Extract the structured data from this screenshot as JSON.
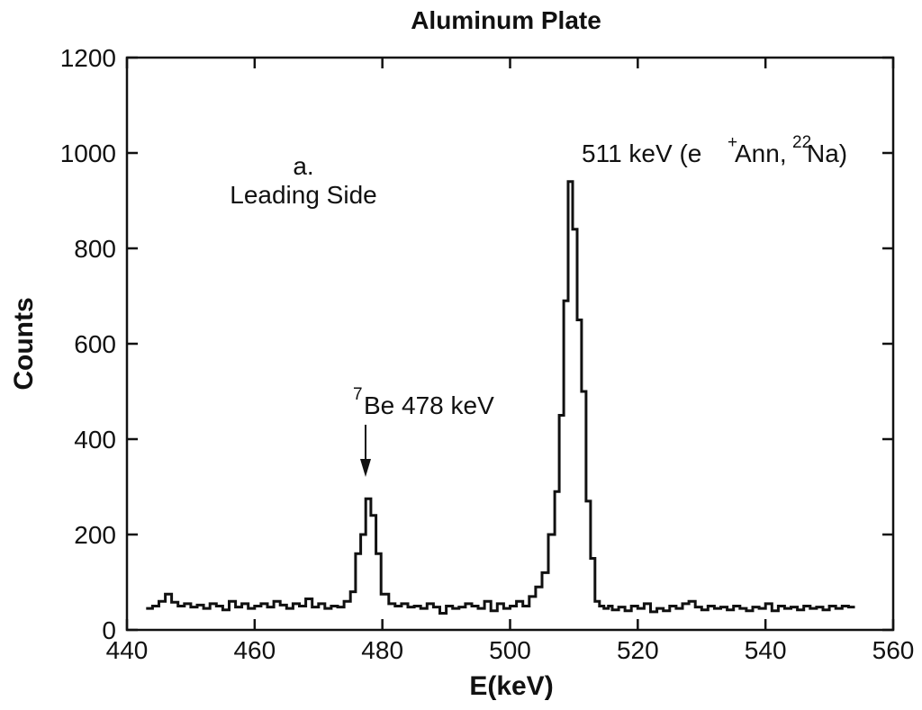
{
  "chart_data": {
    "type": "line",
    "title": "Aluminum Plate",
    "xlabel": "E(keV)",
    "ylabel": "Counts",
    "xlim": [
      440,
      560
    ],
    "ylim": [
      0,
      1200
    ],
    "xticks": [
      440,
      460,
      480,
      500,
      520,
      540,
      560
    ],
    "yticks": [
      0,
      200,
      400,
      600,
      800,
      1000,
      1200
    ],
    "grid": false,
    "series": [
      {
        "style": "step",
        "x": [
          443,
          444,
          445,
          446,
          447,
          448,
          449,
          450,
          451,
          452,
          453,
          454,
          455,
          456,
          457,
          458,
          459,
          460,
          461,
          462,
          463,
          464,
          465,
          466,
          467,
          468,
          469,
          470,
          471,
          472,
          473,
          474,
          475,
          475.8,
          476.6,
          477.4,
          478.2,
          479,
          479.8,
          481,
          482,
          483,
          484,
          485,
          486,
          487,
          488,
          489,
          490,
          491,
          492,
          493,
          494,
          495,
          496,
          497,
          498,
          499,
          500,
          501,
          502,
          503,
          504,
          505,
          506,
          507,
          507.7,
          508.4,
          509.1,
          509.8,
          510.5,
          511.2,
          511.9,
          512.6,
          513.3,
          514,
          514.7,
          515.4,
          516,
          517,
          518,
          519,
          520,
          521,
          522,
          523,
          524,
          525,
          526,
          527,
          528,
          529,
          530,
          531,
          532,
          533,
          534,
          535,
          536,
          537,
          538,
          539,
          540,
          541,
          542,
          543,
          544,
          545,
          546,
          547,
          548,
          549,
          550,
          551,
          552,
          553
        ],
        "y": [
          45,
          50,
          60,
          75,
          58,
          50,
          55,
          48,
          52,
          45,
          55,
          50,
          42,
          60,
          48,
          55,
          45,
          50,
          55,
          48,
          60,
          52,
          45,
          55,
          50,
          65,
          48,
          55,
          45,
          50,
          48,
          60,
          80,
          160,
          200,
          275,
          240,
          160,
          75,
          55,
          50,
          55,
          48,
          50,
          45,
          55,
          48,
          35,
          50,
          45,
          48,
          55,
          50,
          45,
          60,
          40,
          55,
          45,
          50,
          60,
          50,
          70,
          90,
          120,
          200,
          290,
          450,
          690,
          940,
          840,
          650,
          500,
          270,
          150,
          60,
          50,
          45,
          50,
          42,
          48,
          40,
          50,
          45,
          55,
          38,
          45,
          40,
          50,
          45,
          55,
          60,
          48,
          42,
          50,
          45,
          48,
          42,
          50,
          45,
          40,
          48,
          45,
          55,
          40,
          50,
          45,
          48,
          42,
          50,
          45,
          48,
          42,
          50,
          45,
          50,
          48
        ]
      }
    ],
    "annotations": [
      {
        "line1": "a.",
        "line2": "Leading Side"
      },
      {
        "sup": "7",
        "text": "Be 478 keV",
        "x": 477,
        "arrow": true
      },
      {
        "prefix": "511 keV (e",
        "sup_plus": "+",
        "middle": "Ann,",
        "sup_22": "22",
        "suffix": "Na)"
      }
    ]
  }
}
